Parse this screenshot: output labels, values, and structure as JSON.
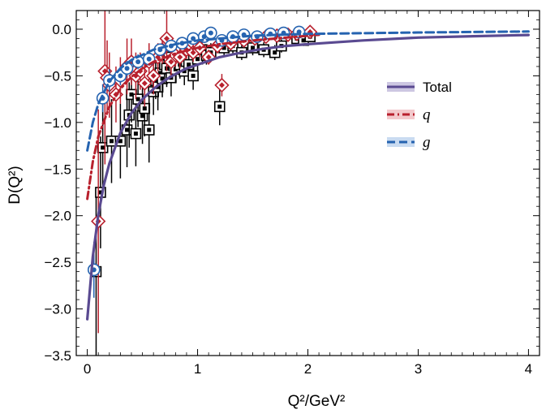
{
  "chart_data": {
    "type": "line",
    "xlabel": "Q²/GeV²",
    "ylabel": "D(Q²)",
    "xlim": [
      -0.1,
      4.1
    ],
    "ylim": [
      -3.5,
      0.2
    ],
    "xticks": [
      "0",
      "1",
      "2",
      "3",
      "4"
    ],
    "yticks": [
      "0.0",
      "-0.5",
      "-1.0",
      "-1.5",
      "-2.0",
      "-2.5",
      "-3.0",
      "-3.5"
    ],
    "legend_position": "right",
    "grid": false,
    "series": [
      {
        "name": "Total",
        "style": "solid",
        "color": "#5a4a91",
        "x": [
          0.0,
          0.05,
          0.1,
          0.15,
          0.2,
          0.3,
          0.4,
          0.5,
          0.6,
          0.7,
          0.8,
          0.9,
          1.0,
          1.2,
          1.4,
          1.6,
          1.8,
          2.0,
          2.5,
          3.0,
          3.5,
          4.0
        ],
        "y": [
          -3.11,
          -2.44,
          -1.99,
          -1.67,
          -1.44,
          -1.11,
          -0.9,
          -0.75,
          -0.64,
          -0.55,
          -0.48,
          -0.42,
          -0.38,
          -0.3,
          -0.25,
          -0.21,
          -0.18,
          -0.16,
          -0.12,
          -0.09,
          -0.075,
          -0.062
        ]
      },
      {
        "name": "q",
        "style": "dash-dot",
        "color": "#b8202d",
        "x": [
          0.0,
          0.05,
          0.1,
          0.2,
          0.3,
          0.4,
          0.5,
          0.6,
          0.8,
          1.0,
          1.2,
          1.5,
          2.0,
          2.1
        ],
        "y": [
          -1.82,
          -1.42,
          -1.15,
          -0.83,
          -0.64,
          -0.51,
          -0.42,
          -0.35,
          -0.26,
          -0.2,
          -0.16,
          -0.12,
          -0.07,
          -0.06
        ]
      },
      {
        "name": "g",
        "style": "dashed",
        "color": "#2563b0",
        "x": [
          0.0,
          0.05,
          0.1,
          0.2,
          0.3,
          0.4,
          0.6,
          0.8,
          1.0,
          1.5,
          2.0,
          3.0,
          4.0
        ],
        "y": [
          -1.3,
          -1.0,
          -0.8,
          -0.56,
          -0.42,
          -0.33,
          -0.22,
          -0.16,
          -0.12,
          -0.07,
          -0.05,
          -0.035,
          -0.025
        ]
      }
    ],
    "points": [
      {
        "series": "Total",
        "marker": "square",
        "color": "#000000",
        "x": [
          0.08,
          0.12,
          0.14,
          0.22,
          0.3,
          0.36,
          0.38,
          0.4,
          0.44,
          0.46,
          0.5,
          0.52,
          0.56,
          0.6,
          0.62,
          0.64,
          0.66,
          0.68,
          0.7,
          0.72,
          0.74,
          0.76,
          0.78,
          0.8,
          0.84,
          0.88,
          0.92,
          0.96,
          1.0,
          1.04,
          1.08,
          1.12,
          1.2,
          1.24,
          1.32,
          1.4,
          1.5,
          1.6,
          1.7,
          1.76,
          1.9,
          1.96,
          2.02
        ],
        "y": [
          -2.6,
          -1.75,
          -1.27,
          -1.2,
          -1.2,
          -1.08,
          -0.92,
          -0.7,
          -1.12,
          -0.75,
          -0.93,
          -0.85,
          -1.08,
          -0.67,
          -0.55,
          -0.62,
          -0.47,
          -0.53,
          -0.38,
          -0.42,
          -0.3,
          -0.52,
          -0.35,
          -0.43,
          -0.38,
          -0.45,
          -0.38,
          -0.5,
          -0.32,
          -0.22,
          -0.28,
          -0.25,
          -0.83,
          -0.2,
          -0.18,
          -0.25,
          -0.2,
          -0.22,
          -0.25,
          -0.18,
          -0.1,
          -0.12,
          -0.08
        ],
        "err": [
          0.9,
          0.6,
          0.5,
          0.45,
          0.4,
          0.4,
          0.35,
          0.3,
          0.35,
          0.3,
          0.3,
          0.3,
          0.35,
          0.25,
          0.2,
          0.25,
          0.2,
          0.2,
          0.2,
          0.2,
          0.15,
          0.2,
          0.15,
          0.15,
          0.15,
          0.15,
          0.12,
          0.15,
          0.12,
          0.1,
          0.1,
          0.1,
          0.2,
          0.08,
          0.08,
          0.08,
          0.08,
          0.08,
          0.08,
          0.07,
          0.06,
          0.06,
          0.06
        ]
      },
      {
        "series": "q",
        "marker": "diamond",
        "color": "#b8202d",
        "x": [
          0.1,
          0.16,
          0.18,
          0.2,
          0.26,
          0.3,
          0.36,
          0.4,
          0.44,
          0.48,
          0.52,
          0.56,
          0.6,
          0.64,
          0.68,
          0.72,
          0.76,
          0.8,
          0.84,
          0.9,
          0.96,
          1.02,
          1.1,
          1.18,
          1.22,
          1.3,
          1.42,
          1.52,
          1.62,
          1.72,
          1.82,
          1.9,
          2.02
        ],
        "y": [
          -2.06,
          -0.45,
          -0.52,
          -0.6,
          -0.7,
          -0.55,
          -0.4,
          -0.35,
          -0.5,
          -0.45,
          -0.58,
          -0.35,
          -0.5,
          -0.3,
          -0.22,
          -0.1,
          -0.35,
          -0.28,
          -0.3,
          -0.22,
          -0.25,
          -0.2,
          -0.3,
          -0.18,
          -0.6,
          -0.15,
          -0.12,
          -0.1,
          -0.08,
          -0.07,
          -0.06,
          -0.05,
          -0.03
        ],
        "err": [
          1.2,
          1.0,
          0.4,
          0.35,
          0.3,
          0.25,
          0.3,
          0.25,
          0.25,
          0.2,
          0.25,
          0.2,
          0.2,
          0.15,
          0.15,
          0.35,
          0.15,
          0.12,
          0.12,
          0.1,
          0.1,
          0.1,
          0.08,
          0.08,
          0.12,
          0.06,
          0.06,
          0.05,
          0.05,
          0.04,
          0.04,
          0.04,
          0.03
        ]
      },
      {
        "series": "g",
        "marker": "circle",
        "color": "#2563b0",
        "x": [
          0.06,
          0.14,
          0.2,
          0.3,
          0.36,
          0.46,
          0.56,
          0.66,
          0.76,
          0.86,
          0.96,
          1.06,
          1.12,
          1.22,
          1.32,
          1.42,
          1.54,
          1.66,
          1.78,
          1.92
        ],
        "y": [
          -2.58,
          -0.74,
          -0.55,
          -0.5,
          -0.42,
          -0.35,
          -0.32,
          -0.22,
          -0.18,
          -0.15,
          -0.1,
          -0.08,
          -0.04,
          -0.12,
          -0.08,
          -0.06,
          -0.08,
          -0.05,
          -0.04,
          -0.03
        ],
        "err": [
          0.3,
          0.15,
          0.12,
          0.1,
          0.08,
          0.08,
          0.07,
          0.06,
          0.05,
          0.05,
          0.04,
          0.04,
          0.03,
          0.04,
          0.03,
          0.03,
          0.03,
          0.03,
          0.02,
          0.02
        ]
      }
    ],
    "legend": [
      {
        "label": "Total",
        "style": "solid",
        "color": "#5a4a91"
      },
      {
        "label": "q",
        "style": "dash-dot",
        "color": "#b8202d"
      },
      {
        "label": "g",
        "style": "dashed",
        "color": "#2563b0"
      }
    ]
  }
}
